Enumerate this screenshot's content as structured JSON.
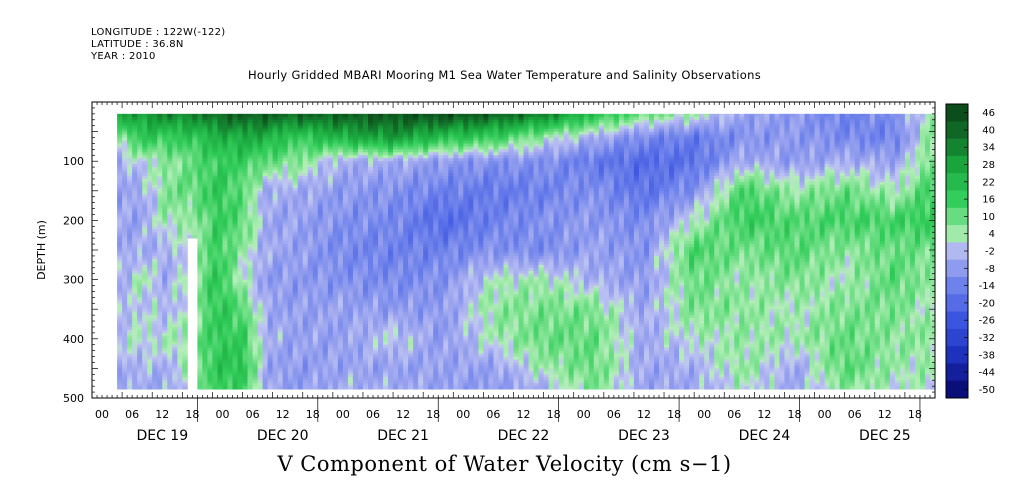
{
  "header": {
    "longitude": "LONGITUDE : 122W(-122)",
    "latitude": "LATITUDE : 36.8N",
    "year": "YEAR : 2010"
  },
  "title": "Hourly Gridded MBARI Mooring M1 Sea Water Temperature and Salinity Observations",
  "x_title": "V Component of Water Velocity (cm s−1)",
  "chart_data": {
    "type": "heatmap",
    "title": "Hourly Gridded MBARI Mooring M1 Sea Water Temperature and Salinity Observations",
    "xlabel": "",
    "ylabel": "DEPTH (m)",
    "colorbar_label": "V Component of Water Velocity (cm s−1)",
    "y_inverted": true,
    "ylim": [
      500,
      0
    ],
    "y_ticks": [
      100,
      200,
      300,
      400,
      500
    ],
    "x_range_days": [
      "DEC 19",
      "DEC 26"
    ],
    "x_hour_ticks": [
      "00",
      "06",
      "12",
      "18",
      "00",
      "06",
      "12",
      "18",
      "00",
      "06",
      "12",
      "18",
      "00",
      "06",
      "12",
      "18",
      "00",
      "06",
      "12",
      "18",
      "00",
      "06",
      "12",
      "18",
      "00",
      "06",
      "12",
      "18"
    ],
    "x_day_labels": [
      "DEC 19",
      "DEC 20",
      "DEC 21",
      "DEC 22",
      "DEC 23",
      "DEC 24",
      "DEC 25"
    ],
    "colorbar_ticks": [
      46,
      40,
      34,
      28,
      22,
      16,
      10,
      4,
      -2,
      -8,
      -14,
      -20,
      -26,
      -32,
      -38,
      -44,
      -50
    ],
    "colorbar_range": [
      -50,
      50
    ],
    "colors": {
      "positive_strong": "#0a4a18",
      "positive_mid": "#2ed158",
      "positive_weak": "#a8eeb0",
      "negative_weak": "#b8bdf2",
      "negative_mid": "#5a70e6",
      "negative_strong": "#0a0e8c"
    },
    "data_start_hour": 5,
    "data_top_depth": 20,
    "data_bottom_depth": 485,
    "grid_hours": [
      5,
      10,
      15,
      20,
      25,
      30,
      35,
      40,
      50,
      60,
      70,
      80,
      90,
      100,
      110,
      120,
      130,
      140,
      150,
      160,
      168
    ],
    "grid_depths": [
      20,
      60,
      100,
      150,
      200,
      250,
      300,
      350,
      400,
      450,
      485
    ],
    "values": [
      [
        28,
        5,
        -5,
        -6,
        -6,
        -6,
        -5,
        -4,
        0,
        -4,
        -5
      ],
      [
        30,
        18,
        2,
        -5,
        -6,
        -4,
        4,
        0,
        2,
        -3,
        -5
      ],
      [
        35,
        16,
        5,
        8,
        5,
        -4,
        -5,
        -3,
        2,
        -4,
        -5
      ],
      [
        34,
        18,
        10,
        10,
        4,
        2,
        6,
        4,
        7,
        5,
        0
      ],
      [
        40,
        24,
        16,
        18,
        16,
        16,
        18,
        18,
        17,
        18,
        17
      ],
      [
        42,
        26,
        16,
        10,
        12,
        5,
        2,
        12,
        16,
        20,
        14
      ],
      [
        42,
        25,
        10,
        -5,
        -6,
        -5,
        -8,
        -5,
        -4,
        -6,
        -5
      ],
      [
        40,
        16,
        8,
        -4,
        -6,
        -6,
        -8,
        -7,
        -6,
        -8,
        -8
      ],
      [
        42,
        24,
        -4,
        -8,
        -10,
        -12,
        -10,
        -6,
        -7,
        -6,
        -4
      ],
      [
        44,
        30,
        -4,
        -10,
        -12,
        -14,
        -12,
        -8,
        1,
        -7,
        -4
      ],
      [
        46,
        20,
        -8,
        -14,
        -20,
        -14,
        -10,
        -8,
        -8,
        -6,
        -7
      ],
      [
        42,
        16,
        -10,
        -16,
        -14,
        -10,
        2,
        6,
        3,
        -7,
        -8
      ],
      [
        36,
        4,
        -10,
        -14,
        -10,
        -12,
        4,
        8,
        10,
        4,
        -4
      ],
      [
        20,
        -4,
        -16,
        -10,
        -8,
        -6,
        -4,
        8,
        10,
        10,
        8
      ],
      [
        10,
        -12,
        -20,
        -18,
        -12,
        -10,
        -8,
        -6,
        -5,
        -6,
        -6
      ],
      [
        4,
        -16,
        -18,
        -10,
        2,
        14,
        10,
        8,
        2,
        -4,
        -5
      ],
      [
        -6,
        -10,
        -4,
        14,
        16,
        8,
        4,
        6,
        5,
        6,
        2
      ],
      [
        -8,
        -8,
        -8,
        4,
        12,
        12,
        8,
        2,
        4,
        -6,
        -5
      ],
      [
        -14,
        -12,
        -4,
        10,
        14,
        6,
        2,
        8,
        10,
        12,
        6
      ],
      [
        -10,
        -14,
        -6,
        2,
        14,
        10,
        12,
        8,
        6,
        4,
        2
      ],
      [
        6,
        8,
        10,
        16,
        18,
        8,
        4,
        2,
        6,
        4,
        2
      ]
    ],
    "gap": {
      "from_hour": 19,
      "to_hour": 21,
      "below_depth": 230
    }
  }
}
